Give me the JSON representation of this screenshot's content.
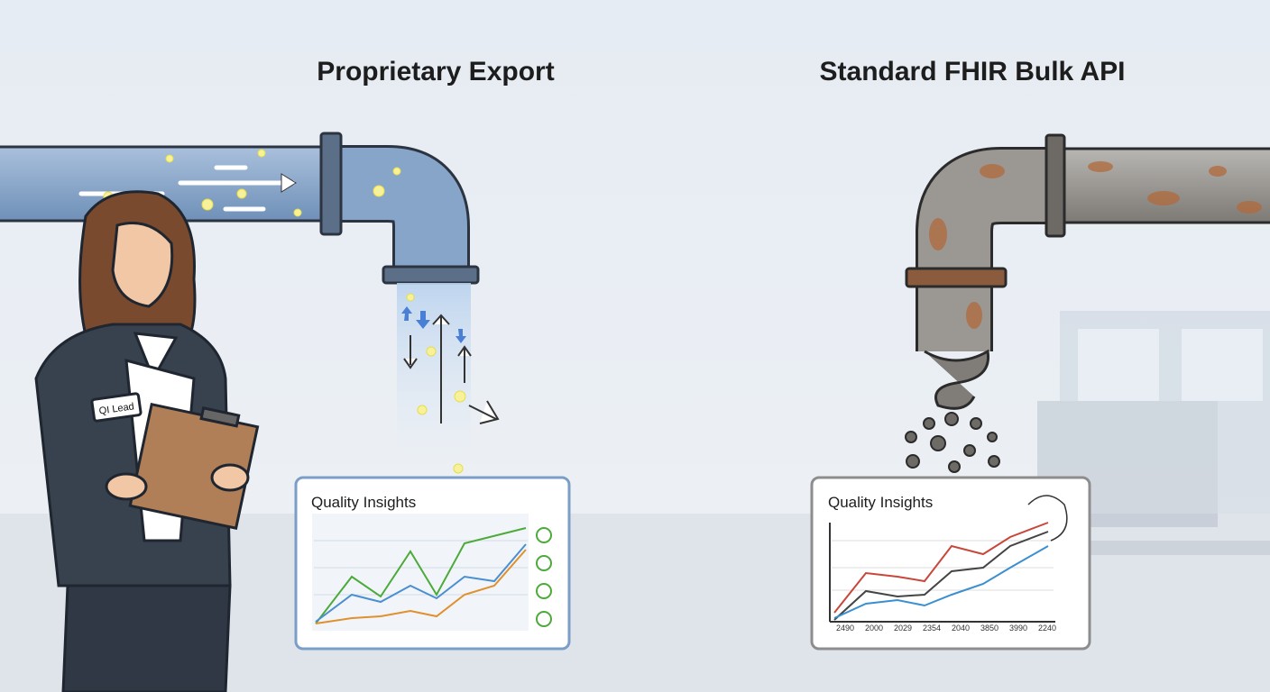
{
  "panels": [
    {
      "title": "Proprietary Export",
      "card_title": "Quality Insights"
    },
    {
      "title": "Standard FHIR Bulk API",
      "card_title": "Quality Insights",
      "x_labels": [
        "2490",
        "2000",
        "2029",
        "2354",
        "2040",
        "3850",
        "3990",
        "2240"
      ]
    }
  ],
  "badge": "QI Lead"
}
